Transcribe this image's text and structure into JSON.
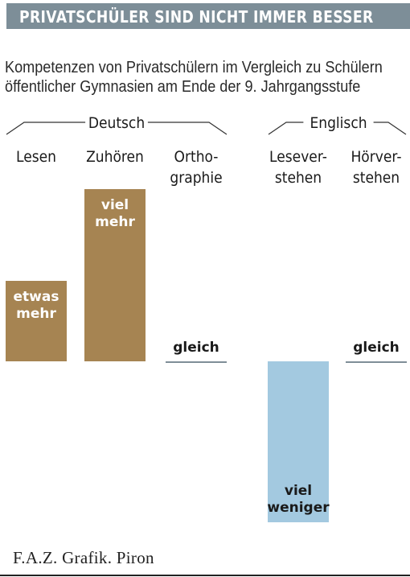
{
  "header": {
    "title": "PRIVATSCHÜLER SIND NICHT IMMER BESSER"
  },
  "subtitle": {
    "line1": "Kompetenzen von Privatschülern im Vergleich zu Schülern",
    "line2": "öffentlicher Gymnasien am Ende der 9. Jahrgangsstufe"
  },
  "source": "F.A.Z. Grafik. Piron",
  "colors": {
    "header": "#7d8e98",
    "positive": "#a68452",
    "negative": "#a3c9e0",
    "neutral": "#7f8e97"
  },
  "chart_data": {
    "type": "bar",
    "groups": [
      {
        "name": "Deutsch",
        "categories": [
          "Lesen",
          "Zuhören",
          "Orthographie"
        ]
      },
      {
        "name": "Englisch",
        "categories": [
          "Leseverstehen",
          "Hörverstehen"
        ]
      }
    ],
    "categories": [
      "Lesen",
      "Zuhören",
      "Orthographie",
      "Leseverstehen",
      "Hörverstehen"
    ],
    "category_lines": [
      [
        "Lesen"
      ],
      [
        "Zuhören"
      ],
      [
        "Ortho-",
        "graphie"
      ],
      [
        "Lesever-",
        "stehen"
      ],
      [
        "Hörver-",
        "stehen"
      ]
    ],
    "values": [
      1,
      2,
      0,
      -2,
      0
    ],
    "data_labels": [
      [
        "etwas",
        "mehr"
      ],
      [
        "viel",
        "mehr"
      ],
      [
        "gleich"
      ],
      [
        "viel",
        "weniger"
      ],
      [
        "gleich"
      ]
    ],
    "ylim": [
      -2,
      2
    ]
  }
}
